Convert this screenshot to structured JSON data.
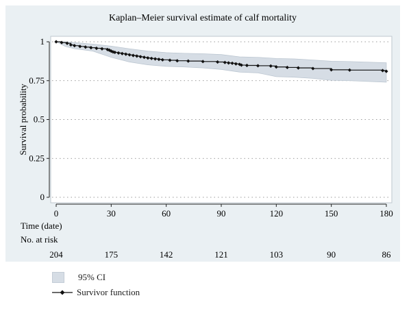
{
  "chart_data": {
    "type": "line",
    "title": "Kaplan–Meier survival estimate of calf mortality",
    "xlabel": "Time (date)",
    "ylabel": "Survival probability",
    "xlim": [
      0,
      180
    ],
    "ylim": [
      0,
      1
    ],
    "x_ticks": [
      "0",
      "30",
      "60",
      "90",
      "120",
      "150",
      "180"
    ],
    "y_ticks": [
      "0",
      "0.25",
      "0.5",
      "0.75",
      "1"
    ],
    "y_tick_values": [
      0,
      0.25,
      0.5,
      0.75,
      1
    ],
    "x_tick_values": [
      0,
      30,
      60,
      90,
      120,
      150,
      180
    ],
    "grid": "horizontal dotted",
    "risk_table": {
      "label": "No. at risk",
      "times": [
        0,
        30,
        60,
        90,
        120,
        150,
        180
      ],
      "counts": [
        "204",
        "175",
        "142",
        "121",
        "103",
        "90",
        "86"
      ]
    },
    "series": [
      {
        "name": "Survivor function",
        "color": "#111111",
        "steps": [
          [
            0,
            1.0
          ],
          [
            3,
            0.995
          ],
          [
            6,
            0.99
          ],
          [
            8,
            0.98
          ],
          [
            10,
            0.975
          ],
          [
            13,
            0.97
          ],
          [
            16,
            0.966
          ],
          [
            19,
            0.962
          ],
          [
            22,
            0.958
          ],
          [
            25,
            0.955
          ],
          [
            28,
            0.95
          ],
          [
            29,
            0.946
          ],
          [
            30,
            0.94
          ],
          [
            31,
            0.935
          ],
          [
            32,
            0.932
          ],
          [
            34,
            0.928
          ],
          [
            36,
            0.924
          ],
          [
            38,
            0.92
          ],
          [
            40,
            0.916
          ],
          [
            42,
            0.912
          ],
          [
            44,
            0.908
          ],
          [
            46,
            0.904
          ],
          [
            48,
            0.9
          ],
          [
            50,
            0.896
          ],
          [
            52,
            0.893
          ],
          [
            54,
            0.89
          ],
          [
            56,
            0.887
          ],
          [
            58,
            0.884
          ],
          [
            62,
            0.881
          ],
          [
            66,
            0.878
          ],
          [
            72,
            0.876
          ],
          [
            80,
            0.873
          ],
          [
            88,
            0.87
          ],
          [
            92,
            0.867
          ],
          [
            94,
            0.864
          ],
          [
            96,
            0.862
          ],
          [
            98,
            0.858
          ],
          [
            100,
            0.855
          ],
          [
            101,
            0.85
          ],
          [
            104,
            0.848
          ],
          [
            110,
            0.846
          ],
          [
            117,
            0.844
          ],
          [
            120,
            0.838
          ],
          [
            126,
            0.835
          ],
          [
            132,
            0.832
          ],
          [
            140,
            0.828
          ],
          [
            150,
            0.82
          ],
          [
            160,
            0.818
          ],
          [
            178,
            0.815
          ],
          [
            180,
            0.81
          ]
        ]
      },
      {
        "name": "95% CI",
        "color": "#d6dde5",
        "upper": [
          [
            0,
            1.0
          ],
          [
            5,
            1.0
          ],
          [
            10,
            0.995
          ],
          [
            20,
            0.985
          ],
          [
            30,
            0.972
          ],
          [
            40,
            0.955
          ],
          [
            50,
            0.94
          ],
          [
            60,
            0.93
          ],
          [
            70,
            0.926
          ],
          [
            80,
            0.923
          ],
          [
            90,
            0.918
          ],
          [
            100,
            0.903
          ],
          [
            110,
            0.9
          ],
          [
            120,
            0.893
          ],
          [
            130,
            0.89
          ],
          [
            140,
            0.883
          ],
          [
            150,
            0.875
          ],
          [
            160,
            0.873
          ],
          [
            180,
            0.865
          ]
        ],
        "lower": [
          [
            0,
            1.0
          ],
          [
            5,
            0.97
          ],
          [
            10,
            0.955
          ],
          [
            20,
            0.94
          ],
          [
            30,
            0.9
          ],
          [
            40,
            0.87
          ],
          [
            50,
            0.852
          ],
          [
            60,
            0.842
          ],
          [
            70,
            0.838
          ],
          [
            80,
            0.832
          ],
          [
            90,
            0.822
          ],
          [
            100,
            0.805
          ],
          [
            110,
            0.8
          ],
          [
            120,
            0.776
          ],
          [
            130,
            0.772
          ],
          [
            140,
            0.765
          ],
          [
            150,
            0.752
          ],
          [
            160,
            0.75
          ],
          [
            180,
            0.74
          ]
        ]
      }
    ],
    "legend": {
      "placement": "bottom-left",
      "items": [
        {
          "label": "95% CI",
          "kind": "band"
        },
        {
          "label": "Survivor function",
          "kind": "line-marker"
        }
      ]
    }
  }
}
